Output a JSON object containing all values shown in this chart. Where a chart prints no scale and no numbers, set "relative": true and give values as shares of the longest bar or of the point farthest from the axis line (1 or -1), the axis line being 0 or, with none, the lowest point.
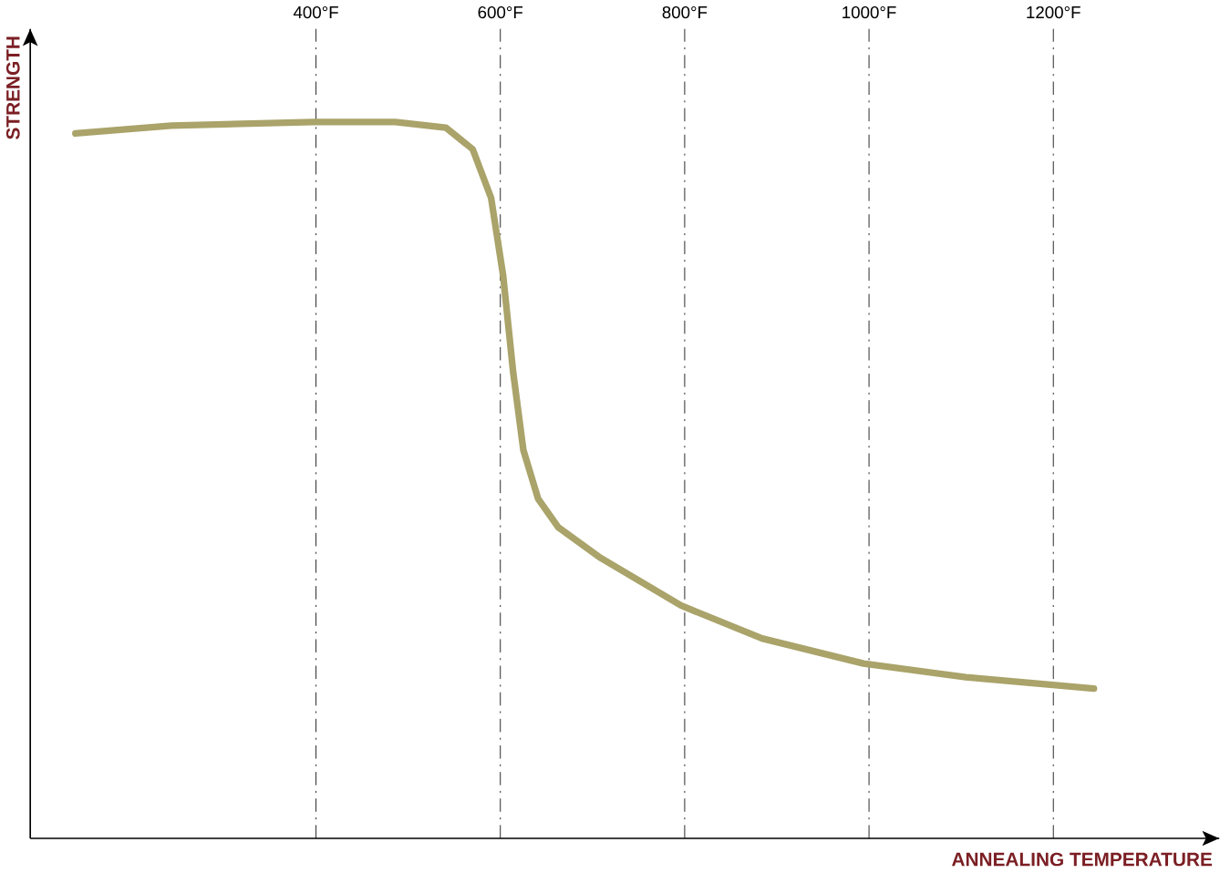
{
  "chart_data": {
    "type": "line",
    "xlabel": "ANNEALING TEMPERATURE",
    "ylabel": "STRENGTH",
    "relative": true,
    "x": [
      139,
      243,
      398,
      486,
      541,
      570,
      590,
      603,
      614,
      625,
      641,
      663,
      707,
      796,
      884,
      994,
      1105,
      1244
    ],
    "values": [
      0.984,
      0.995,
      1,
      1,
      0.992,
      0.962,
      0.894,
      0.786,
      0.65,
      0.542,
      0.474,
      0.434,
      0.393,
      0.325,
      0.279,
      0.244,
      0.225,
      0.209
    ],
    "color": "#aaa36a",
    "xlim": [
      90,
      1380
    ],
    "xticks": [
      {
        "value": 400,
        "label": "400°F"
      },
      {
        "value": 600,
        "label": "600°F"
      },
      {
        "value": 800,
        "label": "800°F"
      },
      {
        "value": 1000,
        "label": "1000°F"
      },
      {
        "value": 1200,
        "label": "1200°F"
      }
    ],
    "grid": "x",
    "marker": "none",
    "line_style": "solid"
  }
}
